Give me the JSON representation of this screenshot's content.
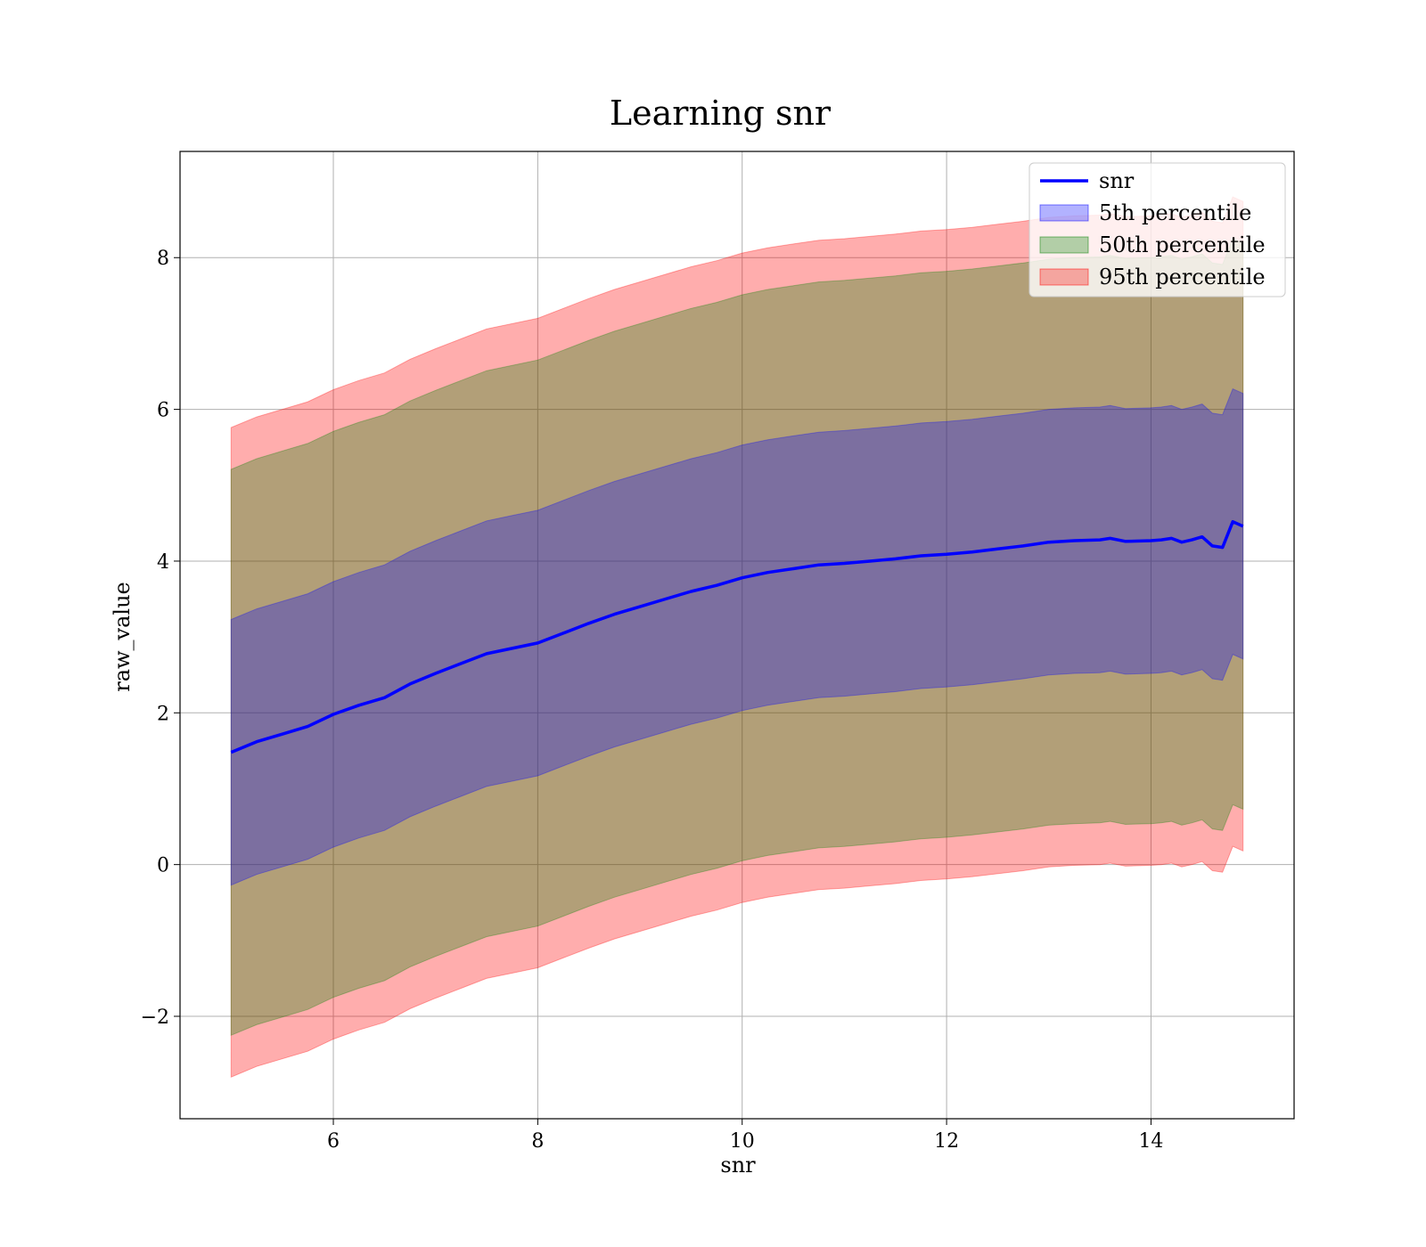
{
  "chart_data": {
    "type": "area",
    "title": "Learning snr",
    "xlabel": "snr",
    "ylabel": "raw_value",
    "xlim": [
      4.5,
      15.4
    ],
    "ylim": [
      -3.35,
      9.4
    ],
    "xticks": [
      6,
      8,
      10,
      12,
      14
    ],
    "yticks": [
      -2,
      0,
      2,
      4,
      6,
      8
    ],
    "xtick_labels": [
      "6",
      "8",
      "10",
      "12",
      "14"
    ],
    "ytick_labels": [
      "−2",
      "0",
      "2",
      "4",
      "6",
      "8"
    ],
    "grid": true,
    "legend_position": "upper-right",
    "x": [
      5.0,
      5.25,
      5.5,
      5.75,
      6.0,
      6.25,
      6.5,
      6.75,
      7.0,
      7.25,
      7.5,
      7.75,
      8.0,
      8.25,
      8.5,
      8.75,
      9.0,
      9.25,
      9.5,
      9.75,
      10.0,
      10.25,
      10.5,
      10.75,
      11.0,
      11.25,
      11.5,
      11.75,
      12.0,
      12.25,
      12.5,
      12.75,
      13.0,
      13.25,
      13.5,
      13.6,
      13.75,
      14.0,
      14.1,
      14.2,
      14.3,
      14.4,
      14.5,
      14.6,
      14.7,
      14.8,
      14.9
    ],
    "line_values": [
      1.48,
      1.62,
      1.72,
      1.82,
      1.98,
      2.1,
      2.2,
      2.38,
      2.52,
      2.65,
      2.78,
      2.85,
      2.92,
      3.05,
      3.18,
      3.3,
      3.4,
      3.5,
      3.6,
      3.68,
      3.78,
      3.85,
      3.9,
      3.95,
      3.97,
      4.0,
      4.03,
      4.07,
      4.09,
      4.12,
      4.16,
      4.2,
      4.25,
      4.27,
      4.28,
      4.3,
      4.26,
      4.27,
      4.28,
      4.3,
      4.25,
      4.28,
      4.32,
      4.2,
      4.18,
      4.52,
      4.46
    ],
    "series": [
      {
        "name": "snr",
        "color": "#0000ff",
        "kind": "line"
      },
      {
        "name": "5th percentile",
        "color": "#0000ff",
        "kind": "band",
        "offset": 1.75
      },
      {
        "name": "50th percentile",
        "color": "#008000",
        "kind": "band",
        "offset": 3.73
      },
      {
        "name": "95th percentile",
        "color": "#ff0000",
        "kind": "band",
        "offset": 4.28
      }
    ]
  }
}
